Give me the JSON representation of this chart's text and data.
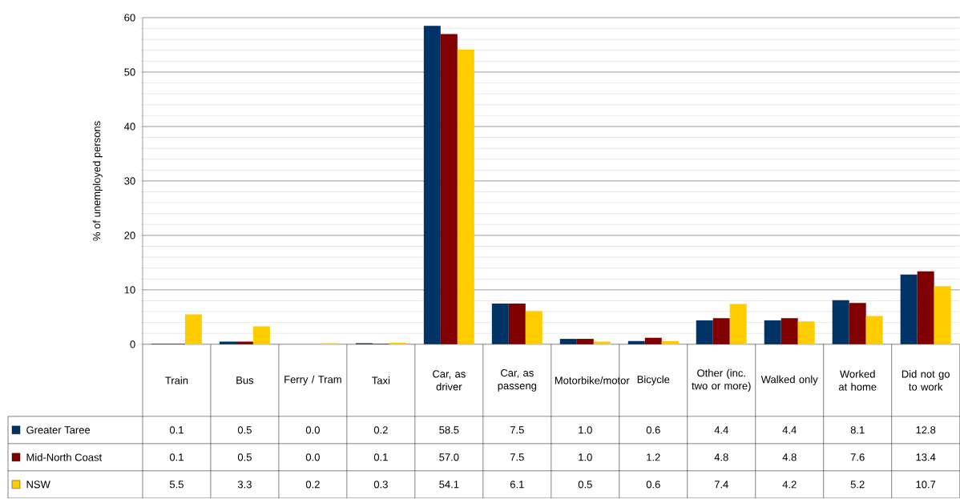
{
  "chart_data": {
    "type": "bar",
    "ylabel": "% of unemployed persons",
    "categories": [
      "Train",
      "Bus",
      "Ferry / Tram",
      "Taxi",
      "Car, as driver",
      "Car, as passeng",
      "Motorbike/motor",
      "Bicycle",
      "Other (inc. two or more)",
      "Walked only",
      "Worked at home",
      "Did not go to work"
    ],
    "series": [
      {
        "name": "Greater Taree",
        "color": "#003366",
        "values": [
          0.1,
          0.5,
          0.0,
          0.2,
          58.5,
          7.5,
          1.0,
          0.6,
          4.4,
          4.4,
          8.1,
          12.8
        ],
        "value_labels": [
          "0.1",
          "0.5",
          "0.0",
          "0.2",
          "58.5",
          "7.5",
          "1.0",
          "0.6",
          "4.4",
          "4.4",
          "8.1",
          "12.8"
        ]
      },
      {
        "name": "Mid-North Coast",
        "color": "#800000",
        "values": [
          0.1,
          0.5,
          0.0,
          0.1,
          57.0,
          7.5,
          1.0,
          1.2,
          4.8,
          4.8,
          7.6,
          13.4
        ],
        "value_labels": [
          "0.1",
          "0.5",
          "0.0",
          "0.1",
          "57.0",
          "7.5",
          "1.0",
          "1.2",
          "4.8",
          "4.8",
          "7.6",
          "13.4"
        ]
      },
      {
        "name": "NSW",
        "color": "#ffcc00",
        "values": [
          5.5,
          3.3,
          0.2,
          0.3,
          54.1,
          6.1,
          0.5,
          0.6,
          7.4,
          4.2,
          5.2,
          10.7
        ],
        "value_labels": [
          "5.5",
          "3.3",
          "0.2",
          "0.3",
          "54.1",
          "6.1",
          "0.5",
          "0.6",
          "7.4",
          "4.2",
          "5.2",
          "10.7"
        ]
      }
    ],
    "ylim": [
      0,
      60
    ],
    "yticks": [
      0,
      10,
      20,
      30,
      40,
      50,
      60
    ],
    "grid": "y",
    "legend": "bottom left"
  }
}
